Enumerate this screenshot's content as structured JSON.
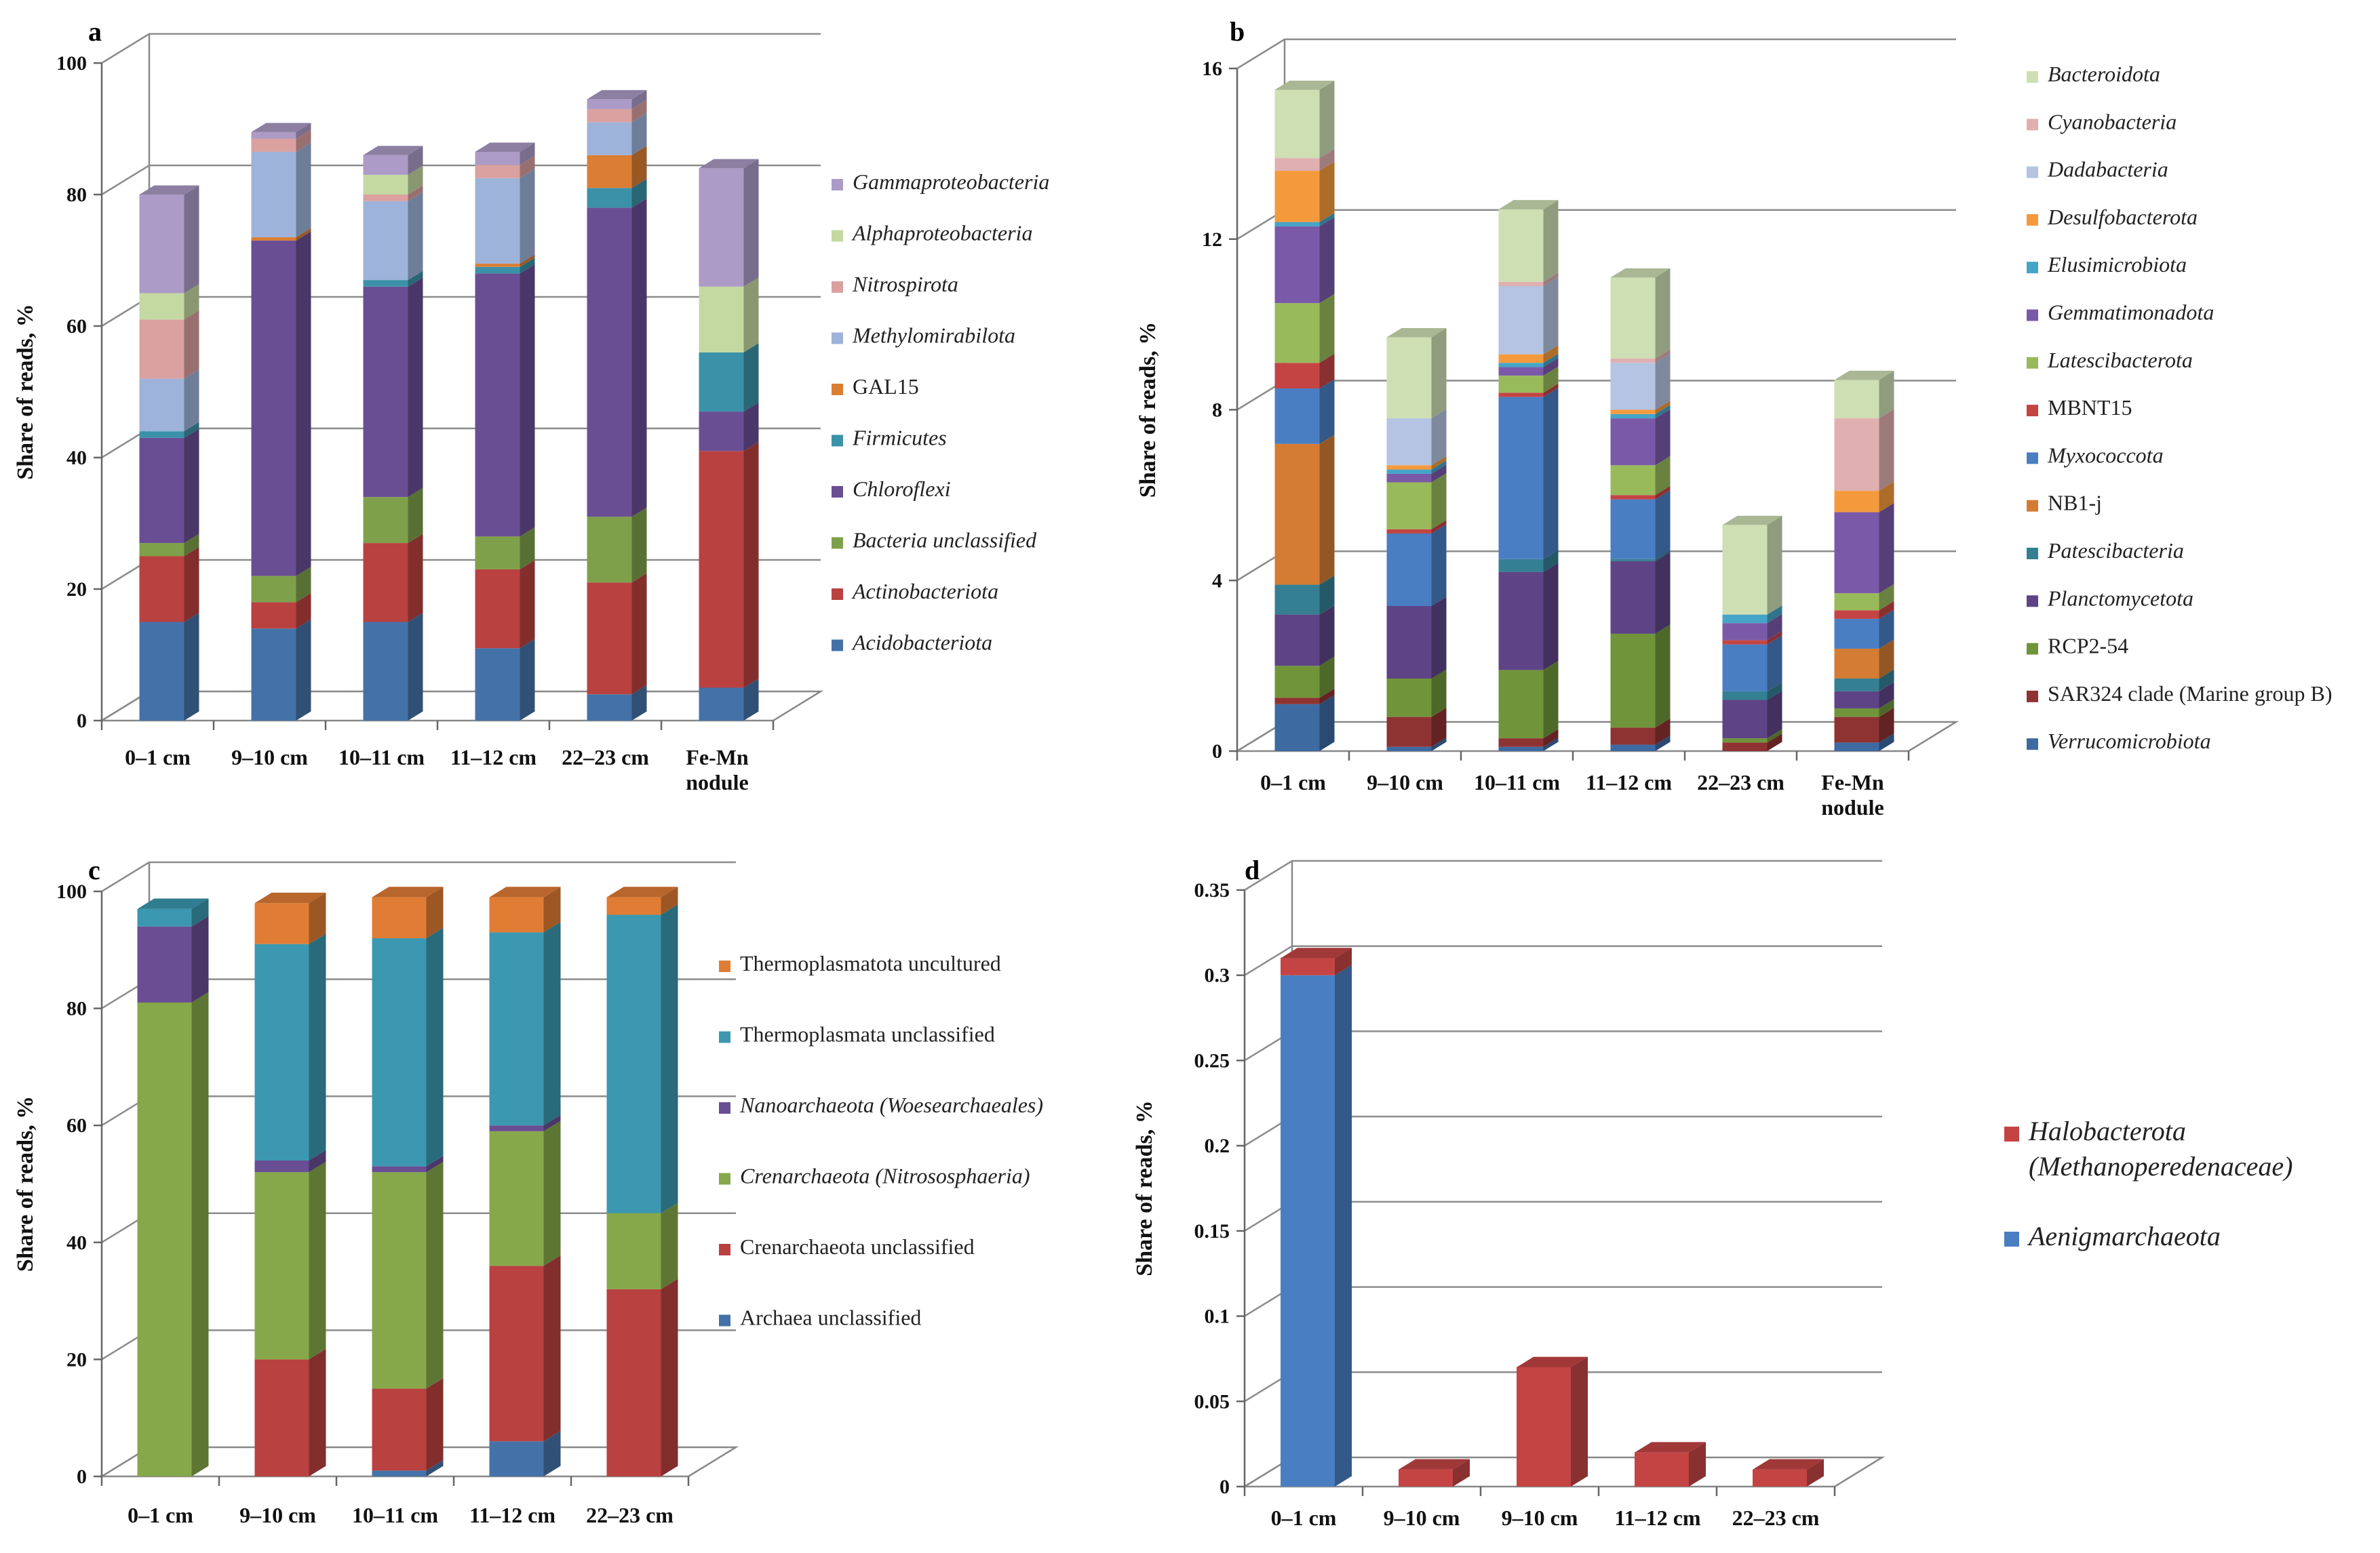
{
  "colors": {
    "Acidobacteriota": "#4472a8",
    "Actinobacteriota": "#b94140",
    "Bacteria unclassified": "#7fa04a",
    "Chloroflexi": "#6a4e94",
    "Firmicutes": "#3b92a8",
    "GAL15": "#db7e34",
    "Methylomirabilota": "#9db3d9",
    "Nitrospirota": "#dba0a0",
    "Alphaproteobacteria": "#c4d9a1",
    "Gammaproteobacteria": "#ab9bc6",
    "Verrucomicrobiota": "#3e6aa2",
    "SAR324": "#8e3232",
    "RCP2-54": "#6f943a",
    "Planctomycetota": "#5e4486",
    "Patescibacteria": "#357f93",
    "NB1-j": "#d47c34",
    "Myxococcota": "#4a7ec2",
    "MBNT15": "#c44444",
    "Latescibacterota": "#98ba5a",
    "Gemmatimonadota": "#7a5aa8",
    "Elusimicrobiota": "#45a5c8",
    "Desulfobacterota": "#f59a3c",
    "Dadabacteria": "#b4c4e2",
    "Cyanobacteria": "#e0b0b0",
    "Bacteroidota": "#cedfb4",
    "Archaea unclassified": "#4472a8",
    "Crenarchaeota unclassified": "#b94140",
    "Crenarchaeota (Nitrososphaeria)": "#86a84a",
    "Nanoarchaeota (Woesearchaeales)": "#6a4e94",
    "Thermoplasmata unclassified": "#3b98b0",
    "Thermoplasmatota uncultured": "#e07c34",
    "Aenigmarchaeota": "#4a7ec2",
    "Halobacterota": "#c44444"
  },
  "chart_data": [
    {
      "panel": "a",
      "type": "bar",
      "stacked": true,
      "ylabel": "Share of reads, %",
      "ylim": [
        0,
        100
      ],
      "yticks": [
        "0",
        "20",
        "40",
        "60",
        "80",
        "100"
      ],
      "ytick_values": [
        0,
        20,
        40,
        60,
        80,
        100
      ],
      "categories": [
        "0–1 cm",
        "9–10 cm",
        "10–11 cm",
        "11–12 cm",
        "22–23 cm",
        "Fe-Mn nodule"
      ],
      "series": [
        {
          "name": "Acidobacteriota",
          "values": [
            15,
            14,
            15,
            11,
            4,
            5
          ]
        },
        {
          "name": "Actinobacteriota",
          "values": [
            10,
            4,
            12,
            12,
            17,
            36
          ]
        },
        {
          "name": "Bacteria unclassified",
          "values": [
            2,
            4,
            7,
            5,
            10,
            0
          ]
        },
        {
          "name": "Chloroflexi",
          "values": [
            16,
            51,
            32,
            40,
            47,
            6
          ]
        },
        {
          "name": "Firmicutes",
          "values": [
            1,
            0,
            1,
            1,
            3,
            9
          ]
        },
        {
          "name": "GAL15",
          "values": [
            0,
            0.5,
            0,
            0.5,
            5,
            0
          ]
        },
        {
          "name": "Methylomirabilota",
          "values": [
            8,
            13,
            12,
            13,
            5,
            0
          ]
        },
        {
          "name": "Nitrospirota",
          "values": [
            9,
            2,
            1,
            2,
            2,
            0
          ]
        },
        {
          "name": "Alphaproteobacteria",
          "values": [
            4,
            0,
            3,
            0,
            0,
            10
          ]
        },
        {
          "name": "Gammaproteobacteria",
          "values": [
            15,
            1,
            3,
            2,
            1.5,
            18
          ]
        }
      ],
      "legend": [
        {
          "key": "Gammaproteobacteria",
          "label": "Gammaproteobacteria",
          "italic": true
        },
        {
          "key": "Alphaproteobacteria",
          "label": "Alphaproteobacteria",
          "italic": true
        },
        {
          "key": "Nitrospirota",
          "label": "Nitrospirota",
          "italic": true
        },
        {
          "key": "Methylomirabilota",
          "label": "Methylomirabilota",
          "italic": true
        },
        {
          "key": "GAL15",
          "label": "GAL15",
          "italic": false
        },
        {
          "key": "Firmicutes",
          "label": "Firmicutes",
          "italic": true
        },
        {
          "key": "Chloroflexi",
          "label": "Chloroflexi",
          "italic": true
        },
        {
          "key": "Bacteria unclassified",
          "label": "Bacteria unclassified",
          "italic": true
        },
        {
          "key": "Actinobacteriota",
          "label": "Actinobacteriota",
          "italic": true
        },
        {
          "key": "Acidobacteriota",
          "label": "Acidobacteriota",
          "italic": true
        }
      ]
    },
    {
      "panel": "b",
      "type": "bar",
      "stacked": true,
      "ylabel": "Share of reads, %",
      "ylim": [
        0,
        16
      ],
      "yticks": [
        "0",
        "4",
        "8",
        "12",
        "16"
      ],
      "ytick_values": [
        0,
        4,
        8,
        12,
        16
      ],
      "categories": [
        "0–1 cm",
        "9–10 cm",
        "10–11 cm",
        "11–12 cm",
        "22–23 cm",
        "Fe-Mn nodule"
      ],
      "series": [
        {
          "name": "Verrucomicrobiota",
          "values": [
            1.1,
            0.1,
            0.1,
            0.15,
            0,
            0.2
          ]
        },
        {
          "name": "SAR324",
          "values": [
            0.15,
            0.7,
            0.2,
            0.4,
            0.2,
            0.6
          ]
        },
        {
          "name": "RCP2-54",
          "values": [
            0.75,
            0.9,
            1.6,
            2.2,
            0.1,
            0.2
          ]
        },
        {
          "name": "Planctomycetota",
          "values": [
            1.2,
            1.7,
            2.3,
            1.7,
            0.9,
            0.4
          ]
        },
        {
          "name": "Patescibacteria",
          "values": [
            0.7,
            0,
            0.3,
            0.05,
            0.2,
            0.3
          ]
        },
        {
          "name": "NB1-j",
          "values": [
            3.3,
            0,
            0,
            0,
            0,
            0.7
          ]
        },
        {
          "name": "Myxococcota",
          "values": [
            1.3,
            1.7,
            3.8,
            1.4,
            1.1,
            0.7
          ]
        },
        {
          "name": "MBNT15",
          "values": [
            0.6,
            0.1,
            0.1,
            0.1,
            0.1,
            0.2
          ]
        },
        {
          "name": "Latescibacterota",
          "values": [
            1.4,
            1.1,
            0.4,
            0.7,
            0,
            0.4
          ]
        },
        {
          "name": "Gemmatimonadota",
          "values": [
            1.8,
            0.2,
            0.2,
            1.1,
            0.4,
            1.9
          ]
        },
        {
          "name": "Elusimicrobiota",
          "values": [
            0.1,
            0.1,
            0.1,
            0.1,
            0.2,
            0
          ]
        },
        {
          "name": "Desulfobacterota",
          "values": [
            1.2,
            0.1,
            0.2,
            0.1,
            0,
            0.5
          ]
        },
        {
          "name": "Dadabacteria",
          "values": [
            0,
            1.1,
            1.6,
            1.1,
            0,
            0
          ]
        },
        {
          "name": "Cyanobacteria",
          "values": [
            0.3,
            0,
            0.1,
            0.1,
            0,
            1.7
          ]
        },
        {
          "name": "Bacteroidota",
          "values": [
            1.6,
            1.9,
            1.7,
            1.9,
            2.1,
            0.9
          ]
        }
      ],
      "legend": [
        {
          "key": "Bacteroidota",
          "label": "Bacteroidota",
          "italic": true
        },
        {
          "key": "Cyanobacteria",
          "label": "Cyanobacteria",
          "italic": true
        },
        {
          "key": "Dadabacteria",
          "label": "Dadabacteria",
          "italic": true
        },
        {
          "key": "Desulfobacterota",
          "label": "Desulfobacterota",
          "italic": true
        },
        {
          "key": "Elusimicrobiota",
          "label": "Elusimicrobiota",
          "italic": true
        },
        {
          "key": "Gemmatimonadota",
          "label": "Gemmatimonadota",
          "italic": true
        },
        {
          "key": "Latescibacterota",
          "label": "Latescibacterota",
          "italic": true
        },
        {
          "key": "MBNT15",
          "label": "MBNT15",
          "italic": false
        },
        {
          "key": "Myxococcota",
          "label": "Myxococcota",
          "italic": true
        },
        {
          "key": "NB1-j",
          "label": "NB1-j",
          "italic": false
        },
        {
          "key": "Patescibacteria",
          "label": "Patescibacteria",
          "italic": true
        },
        {
          "key": "Planctomycetota",
          "label": "Planctomycetota",
          "italic": true
        },
        {
          "key": "RCP2-54",
          "label": "RCP2-54",
          "italic": false
        },
        {
          "key": "SAR324",
          "label": "SAR324 clade (Marine group B)",
          "italic": false
        },
        {
          "key": "Verrucomicrobiota",
          "label": "Verrucomicrobiota",
          "italic": true
        }
      ]
    },
    {
      "panel": "c",
      "type": "bar",
      "stacked": true,
      "ylabel": "Share of reads, %",
      "ylim": [
        0,
        100
      ],
      "yticks": [
        "0",
        "20",
        "40",
        "60",
        "80",
        "100"
      ],
      "ytick_values": [
        0,
        20,
        40,
        60,
        80,
        100
      ],
      "categories": [
        "0–1 cm",
        "9–10 cm",
        "10–11 cm",
        "11–12 cm",
        "22–23 cm"
      ],
      "series": [
        {
          "name": "Archaea unclassified",
          "values": [
            0,
            0,
            1,
            6,
            0
          ]
        },
        {
          "name": "Crenarchaeota unclassified",
          "values": [
            0,
            20,
            14,
            30,
            32
          ]
        },
        {
          "name": "Crenarchaeota (Nitrososphaeria)",
          "values": [
            81,
            32,
            37,
            23,
            13
          ]
        },
        {
          "name": "Nanoarchaeota (Woesearchaeales)",
          "values": [
            13,
            2,
            1,
            1,
            0
          ]
        },
        {
          "name": "Thermoplasmata unclassified",
          "values": [
            3,
            37,
            39,
            33,
            51
          ]
        },
        {
          "name": "Thermoplasmatota uncultured",
          "values": [
            0,
            7,
            7,
            6,
            3
          ]
        }
      ],
      "legend": [
        {
          "key": "Thermoplasmatota uncultured",
          "label": "Thermoplasmatota uncultured",
          "italic": false
        },
        {
          "key": "Thermoplasmata unclassified",
          "label": "Thermoplasmata unclassified",
          "italic": false
        },
        {
          "key": "Nanoarchaeota (Woesearchaeales)",
          "label": "Nanoarchaeota (Woesearchaeales)",
          "italic": true
        },
        {
          "key": "Crenarchaeota (Nitrososphaeria)",
          "label": "Crenarchaeota (Nitrososphaeria)",
          "italic": true
        },
        {
          "key": "Crenarchaeota unclassified",
          "label": "Crenarchaeota unclassified",
          "italic": false
        },
        {
          "key": "Archaea unclassified",
          "label": "Archaea unclassified",
          "italic": false
        }
      ]
    },
    {
      "panel": "d",
      "type": "bar",
      "stacked": true,
      "ylabel": "Share of reads, %",
      "ylim": [
        0,
        0.35
      ],
      "yticks": [
        "0",
        "0.05",
        "0.1",
        "0.15",
        "0.2",
        "0.25",
        "0.3",
        "0.35"
      ],
      "ytick_values": [
        0,
        0.05,
        0.1,
        0.15,
        0.2,
        0.25,
        0.3,
        0.35
      ],
      "categories": [
        "0–1 cm",
        "9–10 cm",
        "9–10 cm",
        "11–12 cm",
        "22–23 cm"
      ],
      "series": [
        {
          "name": "Aenigmarchaeota",
          "values": [
            0.3,
            0,
            0,
            0,
            0
          ]
        },
        {
          "name": "Halobacterota",
          "values": [
            0.01,
            0.01,
            0.07,
            0.02,
            0.01
          ]
        }
      ],
      "legend": [
        {
          "key": "Halobacterota",
          "label": "Halobacterota",
          "label2": "(Methanoperedenaceae)",
          "italic": true
        },
        {
          "key": "Aenigmarchaeota",
          "label": "Aenigmarchaeota",
          "italic": true
        }
      ]
    }
  ]
}
